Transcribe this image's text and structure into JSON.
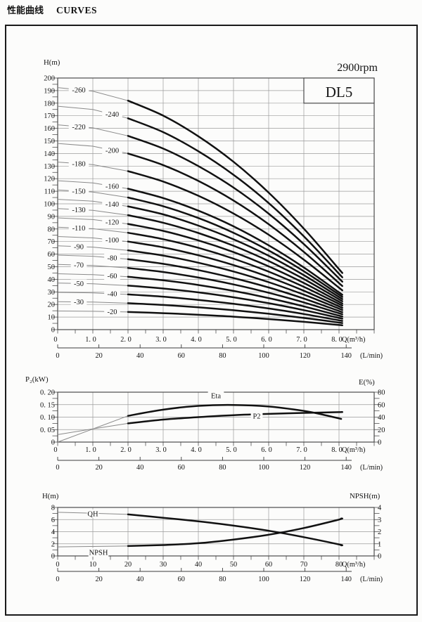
{
  "header": {
    "title_cn": "性能曲线",
    "title_en": "CURVES"
  },
  "chart_data": [
    {
      "type": "line",
      "id": "head-capacity",
      "model": "DL5",
      "speed": "2900rpm",
      "title": "DL5 head–capacity curves, 2900rpm",
      "y_axis_label": "H(m)",
      "x_axis_label": "Q(m³/h)",
      "x2_axis_label": "(L/min)",
      "y_range": [
        0,
        200
      ],
      "x_range": [
        0,
        9
      ],
      "grid": "on",
      "y_tick_labels": [
        "0",
        "10",
        "20",
        "30",
        "40",
        "50",
        "60",
        "70",
        "80",
        "90",
        "100",
        "110",
        "120",
        "130",
        "140",
        "150",
        "160",
        "170",
        "180",
        "190",
        "200"
      ],
      "x_tick_labels": [
        "0",
        "1. 0",
        "2. 0",
        "3. 0",
        "4. 0",
        "5. 0",
        "6. 0",
        "7. 0",
        "8. 0"
      ],
      "x2_tick_labels": [
        "0",
        "20",
        "40",
        "60",
        "80",
        "100",
        "120",
        "140"
      ],
      "q_points": [
        0,
        1,
        2,
        3,
        4,
        5,
        6,
        7,
        8
      ],
      "curves": [
        {
          "label": "-260",
          "H": [
            192.4,
            189.5,
            182.0,
            170.1,
            153.7,
            133.4,
            108.9,
            80.3,
            48.1
          ]
        },
        {
          "label": "-240",
          "H": [
            177.6,
            175.0,
            168.0,
            157.0,
            141.8,
            123.1,
            100.6,
            74.2,
            44.4
          ]
        },
        {
          "label": "-220",
          "H": [
            162.8,
            160.4,
            154.0,
            143.9,
            130.0,
            112.9,
            92.2,
            68.0,
            40.7
          ]
        },
        {
          "label": "-200",
          "H": [
            148.0,
            145.8,
            140.0,
            130.8,
            118.2,
            102.6,
            83.8,
            61.8,
            37.0
          ]
        },
        {
          "label": "-180",
          "H": [
            133.2,
            131.2,
            126.0,
            117.7,
            106.4,
            92.3,
            75.4,
            55.6,
            33.3
          ]
        },
        {
          "label": "-160",
          "H": [
            118.4,
            116.6,
            112.0,
            104.6,
            94.6,
            82.1,
            67.0,
            49.4,
            29.6
          ]
        },
        {
          "label": "-150",
          "H": [
            111.0,
            109.4,
            105.0,
            98.1,
            88.7,
            77.0,
            62.9,
            46.4,
            27.8
          ]
        },
        {
          "label": "-140",
          "H": [
            103.6,
            102.1,
            98.0,
            91.6,
            82.7,
            71.8,
            58.7,
            43.3,
            25.9
          ]
        },
        {
          "label": "-130",
          "H": [
            96.2,
            94.8,
            91.0,
            85.0,
            76.8,
            66.7,
            54.5,
            40.2,
            24.1
          ]
        },
        {
          "label": "-120",
          "H": [
            88.8,
            87.5,
            84.0,
            78.5,
            70.9,
            61.6,
            50.3,
            37.1,
            22.2
          ]
        },
        {
          "label": "-110",
          "H": [
            81.4,
            80.2,
            77.0,
            71.9,
            65.0,
            56.4,
            46.1,
            34.0,
            20.4
          ]
        },
        {
          "label": "-100",
          "H": [
            74.0,
            72.9,
            70.0,
            65.4,
            59.1,
            51.3,
            41.9,
            30.9,
            18.5
          ]
        },
        {
          "label": "-90",
          "H": [
            66.6,
            65.6,
            63.0,
            58.9,
            53.2,
            46.2,
            37.7,
            27.8,
            16.7
          ]
        },
        {
          "label": "-80",
          "H": [
            59.2,
            58.3,
            56.0,
            52.3,
            47.3,
            41.0,
            33.5,
            24.7,
            14.8
          ]
        },
        {
          "label": "-70",
          "H": [
            51.8,
            51.0,
            49.0,
            45.8,
            41.4,
            35.9,
            29.3,
            21.6,
            13.0
          ]
        },
        {
          "label": "-60",
          "H": [
            44.4,
            43.7,
            42.0,
            39.2,
            35.5,
            30.8,
            25.1,
            18.5,
            11.1
          ]
        },
        {
          "label": "-50",
          "H": [
            37.0,
            36.5,
            35.0,
            32.7,
            29.6,
            25.7,
            21.0,
            15.5,
            9.3
          ]
        },
        {
          "label": "-40",
          "H": [
            29.6,
            29.2,
            28.0,
            26.2,
            23.6,
            20.5,
            16.8,
            12.4,
            7.4
          ]
        },
        {
          "label": "-30",
          "H": [
            22.2,
            21.9,
            21.0,
            19.6,
            17.7,
            15.4,
            12.6,
            9.3,
            5.6
          ]
        },
        {
          "label": "-20",
          "H": [
            14.8,
            14.6,
            14.0,
            13.1,
            11.8,
            10.3,
            8.4,
            6.2,
            3.7
          ]
        }
      ]
    },
    {
      "type": "line",
      "id": "power-efficiency",
      "title": "Power and efficiency curves",
      "y_axis_label": "P₂(kW)",
      "y2_axis_label": "E(%)",
      "x_axis_label": "Q(m³/h)",
      "x2_axis_label": "(L/min)",
      "y_range": [
        0,
        0.2
      ],
      "y2_range": [
        0,
        80
      ],
      "x_range": [
        0,
        9
      ],
      "grid": "on",
      "y_tick_labels": [
        "0. 20",
        "0. 15",
        "0. 10",
        "0. 05",
        "0"
      ],
      "y2_tick_labels": [
        "80",
        "60",
        "40",
        "20",
        "0"
      ],
      "x_tick_labels": [
        "0",
        "1. 0",
        "2. 0",
        "3. 0",
        "4. 0",
        "5. 0",
        "6. 0",
        "7. 0",
        "8. 0"
      ],
      "x2_tick_labels": [
        "0",
        "20",
        "40",
        "60",
        "80",
        "100",
        "120",
        "140"
      ],
      "series": [
        {
          "label": "Eta",
          "axis": "E(%)",
          "x": [
            0,
            1,
            2,
            3,
            4,
            5,
            6,
            7,
            7.5,
            8
          ],
          "values": [
            0,
            21,
            42,
            52,
            58,
            59.5,
            57,
            50,
            44.5,
            38
          ]
        },
        {
          "label": "P2",
          "axis": "P₂(kW)",
          "x": [
            0,
            1,
            2,
            3,
            4,
            5,
            6,
            7,
            8
          ],
          "values": [
            0.03,
            0.053,
            0.075,
            0.09,
            0.1,
            0.108,
            0.113,
            0.117,
            0.12
          ]
        }
      ]
    },
    {
      "type": "line",
      "id": "single-stage-npsh",
      "title": "Single stage head and NPSH curves",
      "y_axis_label": "H(m)",
      "y2_axis_label": "NPSH(m)",
      "x_axis_label": "Q(m³/h)",
      "x2_axis_label": "(L/min)",
      "y_range": [
        0,
        8
      ],
      "y2_range": [
        0,
        4
      ],
      "x_range": [
        0,
        90
      ],
      "grid": "on",
      "y_tick_labels": [
        "8",
        "6",
        "4",
        "2",
        "0"
      ],
      "y2_tick_labels": [
        "4",
        "3",
        "2",
        "1",
        "0"
      ],
      "x_tick_labels": [
        "0",
        "10",
        "20",
        "30",
        "40",
        "50",
        "60",
        "70",
        "80"
      ],
      "x2_tick_labels": [
        "0",
        "20",
        "40",
        "60",
        "80",
        "100",
        "120",
        "140"
      ],
      "series": [
        {
          "label": "QH",
          "axis": "H(m)",
          "x": [
            0,
            10,
            20,
            30,
            40,
            50,
            60,
            70,
            80
          ],
          "values": [
            7.2,
            7.05,
            6.85,
            6.3,
            5.7,
            5.0,
            4.15,
            3.1,
            1.9
          ]
        },
        {
          "label": "NPSH",
          "axis": "NPSH(m)",
          "x": [
            0,
            10,
            20,
            30,
            40,
            50,
            60,
            70,
            80
          ],
          "values": [
            0.75,
            0.78,
            0.82,
            0.9,
            1.05,
            1.35,
            1.75,
            2.3,
            3.0
          ]
        }
      ]
    }
  ],
  "colors": {
    "thick_curve": "#111111",
    "thin_curve": "#8a8a8a",
    "grid": "#9b9b9b",
    "frame": "#1a1a1a",
    "axis": "#3c3c3c"
  }
}
